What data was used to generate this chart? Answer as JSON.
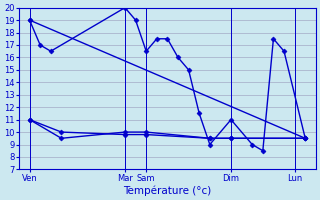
{
  "xlabel": "Température (°c)",
  "background_color": "#cce8f0",
  "grid_color": "#9999bb",
  "line_color": "#0000cc",
  "ylim": [
    7,
    20
  ],
  "yticks": [
    7,
    8,
    9,
    10,
    11,
    12,
    13,
    14,
    15,
    16,
    17,
    18,
    19,
    20
  ],
  "xlim": [
    0,
    56
  ],
  "x_ticks_pos": [
    2,
    20,
    24,
    40,
    52
  ],
  "x_ticks_labels": [
    "Ven",
    "Mar",
    "Sam",
    "Dim",
    "Lun"
  ],
  "x_vlines": [
    2,
    20,
    24,
    40,
    52
  ],
  "lines": [
    {
      "x": [
        2,
        4,
        6,
        20,
        22,
        24,
        26,
        28,
        30,
        32,
        34,
        36,
        40,
        44,
        46,
        48,
        50,
        54
      ],
      "y": [
        19,
        17,
        16.5,
        20,
        19,
        16.5,
        17.5,
        17.5,
        16,
        15,
        11.5,
        9,
        11,
        9,
        8.5,
        17.5,
        16.5,
        9.5
      ]
    },
    {
      "x": [
        2,
        54
      ],
      "y": [
        19,
        9.5
      ]
    },
    {
      "x": [
        2,
        8,
        20,
        24,
        36,
        40,
        54
      ],
      "y": [
        11,
        10,
        9.8,
        9.8,
        9.5,
        9.5,
        9.5
      ]
    },
    {
      "x": [
        2,
        8,
        20,
        24,
        36,
        40,
        54
      ],
      "y": [
        11,
        9.5,
        10,
        10,
        9.5,
        9.5,
        9.5
      ]
    }
  ],
  "marker": "D",
  "marker_size": 2.5,
  "line_width": 1.0
}
